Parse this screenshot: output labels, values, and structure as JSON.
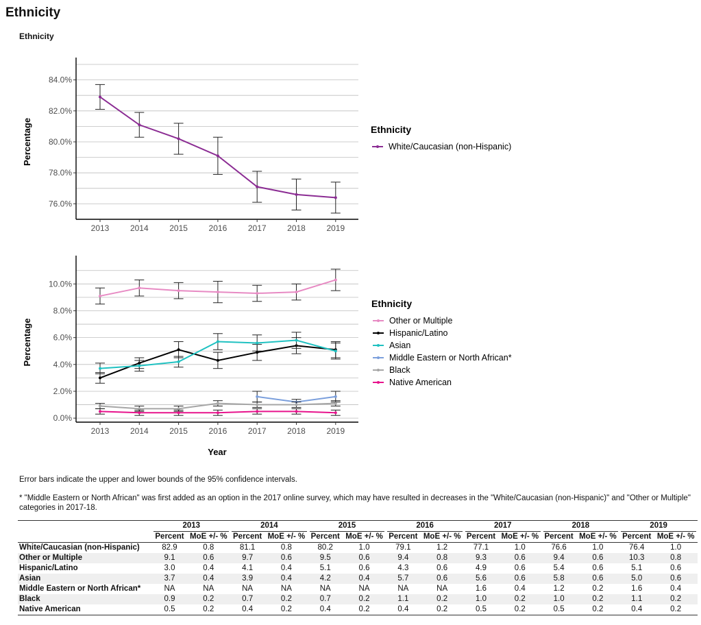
{
  "page_title": "Ethnicity",
  "section_title": "Ethnicity",
  "notes": [
    "Error bars indicate the upper and lower bounds of the 95% confidence intervals.",
    "* \"Middle Eastern or North African\" was first added as an option in the 2017 online survey, which may have resulted in decreases in the \"White/Caucasian (non-Hispanic)\" and \"Other or Multiple\" categories in 2017-18."
  ],
  "chart_data": [
    {
      "type": "line",
      "x": [
        2013,
        2014,
        2015,
        2016,
        2017,
        2018,
        2019
      ],
      "ylabel": "Percentage",
      "xlabel": "",
      "ylim": [
        75,
        85
      ],
      "y_ticks": [
        "76.0%",
        "78.0%",
        "80.0%",
        "82.0%",
        "84.0%"
      ],
      "legend_title": "Ethnicity",
      "legend_position": "right",
      "series": [
        {
          "name": "White/Caucasian (non-Hispanic)",
          "color": "#8b2c93",
          "values": [
            82.9,
            81.1,
            80.2,
            79.1,
            77.1,
            76.6,
            76.4
          ],
          "moe": [
            0.8,
            0.8,
            1.0,
            1.2,
            1.0,
            1.0,
            1.0
          ]
        }
      ]
    },
    {
      "type": "line",
      "x": [
        2013,
        2014,
        2015,
        2016,
        2017,
        2018,
        2019
      ],
      "ylabel": "Percentage",
      "xlabel": "Year",
      "ylim": [
        -0.3,
        11.6
      ],
      "y_ticks": [
        "0.0%",
        "2.0%",
        "4.0%",
        "6.0%",
        "8.0%",
        "10.0%"
      ],
      "legend_title": "Ethnicity",
      "legend_position": "right",
      "series": [
        {
          "name": "Other or Multiple",
          "color": "#e78ac3",
          "values": [
            9.1,
            9.7,
            9.5,
            9.4,
            9.3,
            9.4,
            10.3
          ],
          "moe": [
            0.6,
            0.6,
            0.6,
            0.8,
            0.6,
            0.6,
            0.8
          ]
        },
        {
          "name": "Hispanic/Latino",
          "color": "#000000",
          "values": [
            3.0,
            4.1,
            5.1,
            4.3,
            4.9,
            5.4,
            5.1
          ],
          "moe": [
            0.4,
            0.4,
            0.6,
            0.6,
            0.6,
            0.6,
            0.6
          ]
        },
        {
          "name": "Asian",
          "color": "#1fc1c1",
          "values": [
            3.7,
            3.9,
            4.2,
            5.7,
            5.6,
            5.8,
            5.0
          ],
          "moe": [
            0.4,
            0.4,
            0.4,
            0.6,
            0.6,
            0.6,
            0.6
          ]
        },
        {
          "name": "Middle Eastern or North African*",
          "color": "#7b9fdc",
          "values": [
            null,
            null,
            null,
            null,
            1.6,
            1.2,
            1.6
          ],
          "moe": [
            null,
            null,
            null,
            null,
            0.4,
            0.2,
            0.4
          ]
        },
        {
          "name": "Black",
          "color": "#a6a6a6",
          "values": [
            0.9,
            0.7,
            0.7,
            1.1,
            1.0,
            1.0,
            1.1
          ],
          "moe": [
            0.2,
            0.2,
            0.2,
            0.2,
            0.2,
            0.2,
            0.2
          ]
        },
        {
          "name": "Native American",
          "color": "#e7138c",
          "values": [
            0.5,
            0.4,
            0.4,
            0.4,
            0.5,
            0.5,
            0.4
          ],
          "moe": [
            0.2,
            0.2,
            0.2,
            0.2,
            0.2,
            0.2,
            0.2
          ]
        }
      ]
    }
  ],
  "table": {
    "years": [
      "2013",
      "2014",
      "2015",
      "2016",
      "2017",
      "2018",
      "2019"
    ],
    "sub_headers": [
      "Percent",
      "MoE +/- %"
    ],
    "rows": [
      {
        "label": "White/Caucasian (non-Hispanic)",
        "cells": [
          "82.9",
          "0.8",
          "81.1",
          "0.8",
          "80.2",
          "1.0",
          "79.1",
          "1.2",
          "77.1",
          "1.0",
          "76.6",
          "1.0",
          "76.4",
          "1.0"
        ]
      },
      {
        "label": "Other or Multiple",
        "cells": [
          "9.1",
          "0.6",
          "9.7",
          "0.6",
          "9.5",
          "0.6",
          "9.4",
          "0.8",
          "9.3",
          "0.6",
          "9.4",
          "0.6",
          "10.3",
          "0.8"
        ]
      },
      {
        "label": "Hispanic/Latino",
        "cells": [
          "3.0",
          "0.4",
          "4.1",
          "0.4",
          "5.1",
          "0.6",
          "4.3",
          "0.6",
          "4.9",
          "0.6",
          "5.4",
          "0.6",
          "5.1",
          "0.6"
        ]
      },
      {
        "label": "Asian",
        "cells": [
          "3.7",
          "0.4",
          "3.9",
          "0.4",
          "4.2",
          "0.4",
          "5.7",
          "0.6",
          "5.6",
          "0.6",
          "5.8",
          "0.6",
          "5.0",
          "0.6"
        ]
      },
      {
        "label": "Middle Eastern or North African*",
        "cells": [
          "NA",
          "NA",
          "NA",
          "NA",
          "NA",
          "NA",
          "NA",
          "NA",
          "1.6",
          "0.4",
          "1.2",
          "0.2",
          "1.6",
          "0.4"
        ]
      },
      {
        "label": "Black",
        "cells": [
          "0.9",
          "0.2",
          "0.7",
          "0.2",
          "0.7",
          "0.2",
          "1.1",
          "0.2",
          "1.0",
          "0.2",
          "1.0",
          "0.2",
          "1.1",
          "0.2"
        ]
      },
      {
        "label": "Native American",
        "cells": [
          "0.5",
          "0.2",
          "0.4",
          "0.2",
          "0.4",
          "0.2",
          "0.4",
          "0.2",
          "0.5",
          "0.2",
          "0.5",
          "0.2",
          "0.4",
          "0.2"
        ]
      }
    ]
  }
}
